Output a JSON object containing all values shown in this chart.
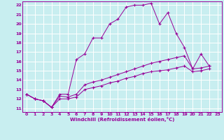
{
  "xlabel": "Windchill (Refroidissement éolien,°C)",
  "bg_color": "#c8eef0",
  "line_color": "#990099",
  "grid_color": "#ffffff",
  "xlim": [
    -0.5,
    23.5
  ],
  "ylim": [
    10.6,
    22.4
  ],
  "yticks": [
    11,
    12,
    13,
    14,
    15,
    16,
    17,
    18,
    19,
    20,
    21,
    22
  ],
  "xticks": [
    0,
    1,
    2,
    3,
    4,
    5,
    6,
    7,
    8,
    9,
    10,
    11,
    12,
    13,
    14,
    15,
    16,
    17,
    18,
    19,
    20,
    21,
    22,
    23
  ],
  "line1_x": [
    0,
    1,
    2,
    3,
    4,
    5,
    6,
    7,
    8,
    9,
    10,
    11,
    12,
    13,
    14,
    15,
    16,
    17,
    18,
    19,
    20,
    21,
    22
  ],
  "line1_y": [
    12.5,
    12.0,
    11.8,
    11.1,
    12.5,
    12.5,
    16.2,
    16.8,
    18.5,
    18.5,
    20.0,
    20.5,
    21.8,
    22.0,
    22.0,
    22.2,
    20.0,
    21.2,
    19.0,
    17.5,
    15.2,
    16.8,
    15.5
  ],
  "line2_x": [
    0,
    1,
    2,
    3,
    4,
    5,
    6,
    7,
    8,
    9,
    10,
    11,
    12,
    13,
    14,
    15,
    16,
    17,
    18,
    19,
    20,
    21,
    22
  ],
  "line2_y": [
    12.5,
    12.0,
    11.8,
    11.1,
    12.3,
    12.2,
    12.5,
    13.5,
    13.8,
    14.0,
    14.3,
    14.6,
    14.9,
    15.2,
    15.5,
    15.8,
    16.0,
    16.2,
    16.4,
    16.6,
    15.2,
    15.3,
    15.5
  ],
  "line3_x": [
    0,
    1,
    2,
    3,
    4,
    5,
    6,
    7,
    8,
    9,
    10,
    11,
    12,
    13,
    14,
    15,
    16,
    17,
    18,
    19,
    20,
    21,
    22
  ],
  "line3_y": [
    12.5,
    12.0,
    11.8,
    11.1,
    12.0,
    12.0,
    12.2,
    13.0,
    13.2,
    13.4,
    13.7,
    13.9,
    14.2,
    14.4,
    14.7,
    14.9,
    15.0,
    15.1,
    15.3,
    15.5,
    14.9,
    15.0,
    15.2
  ]
}
